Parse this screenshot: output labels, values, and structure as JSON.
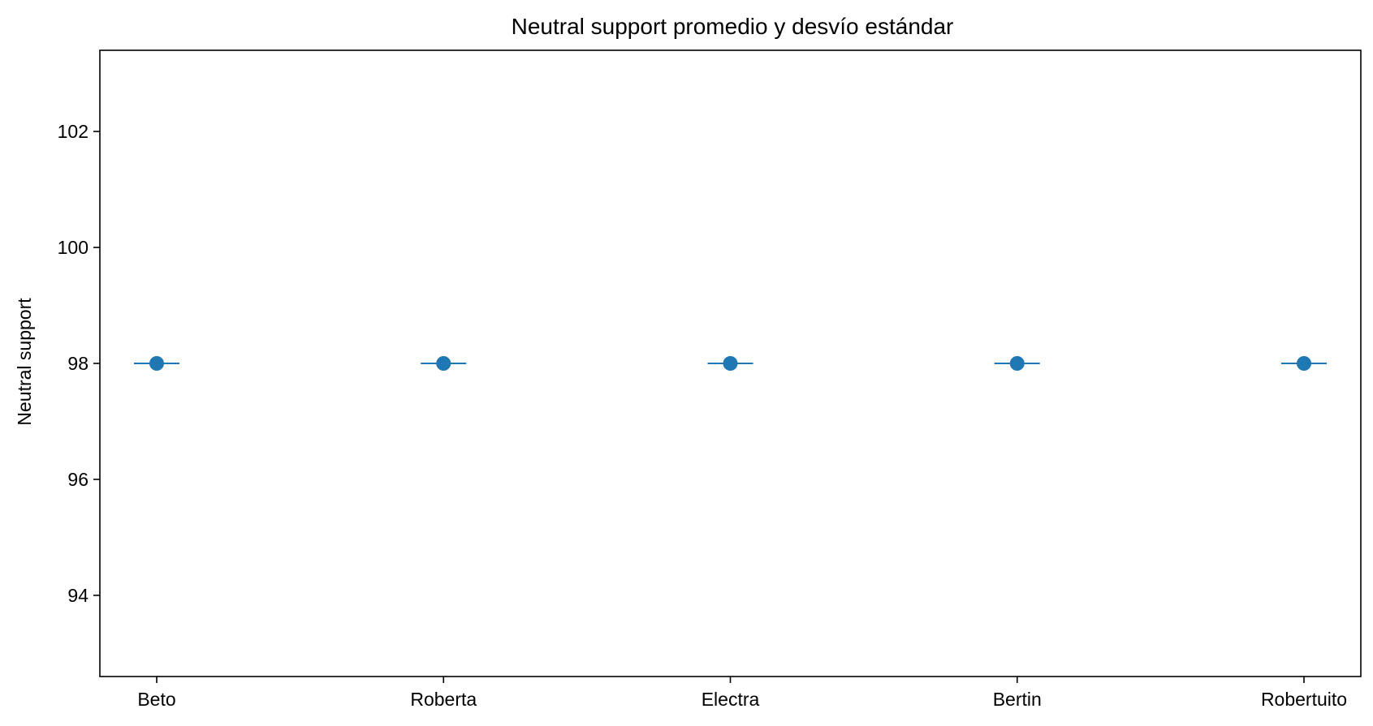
{
  "chart_data": {
    "type": "scatter",
    "title": "Neutral support promedio y desvío estándar",
    "xlabel": "",
    "ylabel": "Neutral support",
    "categories": [
      "Beto",
      "Roberta",
      "Electra",
      "Bertin",
      "Robertuito"
    ],
    "series": [
      {
        "values": [
          98,
          98,
          98,
          98,
          98
        ],
        "std": [
          0,
          0,
          0,
          0,
          0
        ],
        "color": "#1f77b4"
      }
    ],
    "ylim": [
      92.6,
      103.4
    ],
    "yticks": [
      94,
      96,
      98,
      100,
      102
    ],
    "grid": false,
    "legend": "none"
  }
}
